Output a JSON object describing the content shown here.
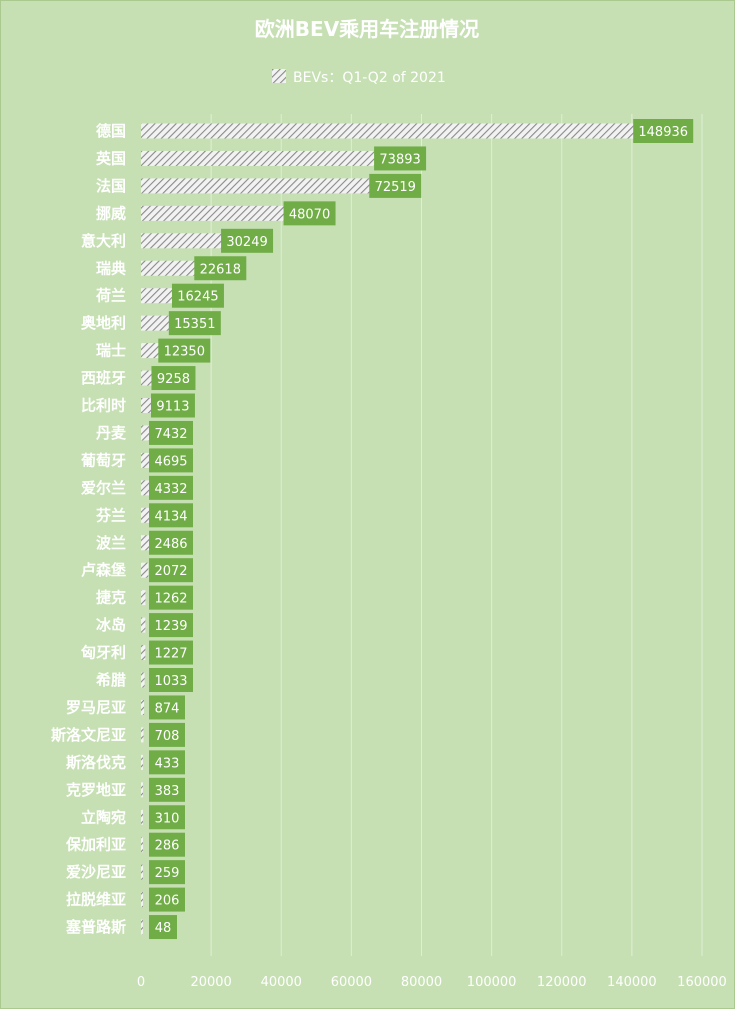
{
  "chart_data": {
    "type": "bar",
    "orientation": "horizontal",
    "title": "欧洲BEV乘用车注册情况",
    "legend": {
      "position": "top",
      "entries": [
        "BEVs：Q1-Q2 of 2021"
      ]
    },
    "series": [
      {
        "name": "BEVs：Q1-Q2 of 2021",
        "values": [
          148936,
          73893,
          72519,
          48070,
          30249,
          22618,
          16245,
          15351,
          12350,
          9258,
          9113,
          7432,
          4695,
          4332,
          4134,
          2486,
          2072,
          1262,
          1239,
          1227,
          1033,
          874,
          708,
          433,
          383,
          310,
          286,
          259,
          206,
          48
        ]
      }
    ],
    "categories": [
      "德国",
      "英国",
      "法国",
      "挪威",
      "意大利",
      "瑞典",
      "荷兰",
      "奥地利",
      "瑞士",
      "西班牙",
      "比利时",
      "丹麦",
      "葡萄牙",
      "爱尔兰",
      "芬兰",
      "波兰",
      "卢森堡",
      "捷克",
      "冰岛",
      "匈牙利",
      "希腊",
      "罗马尼亚",
      "斯洛文尼亚",
      "斯洛伐克",
      "克罗地亚",
      "立陶宛",
      "保加利亚",
      "爱沙尼亚",
      "拉脱维亚",
      "塞普路斯"
    ],
    "xlim": [
      0,
      160000
    ],
    "xticks": [
      "0",
      "20000",
      "40000",
      "60000",
      "80000",
      "100000",
      "120000",
      "140000",
      "160000"
    ],
    "grid": true,
    "colors": {
      "background": "#c6e0b4",
      "label_box": "#70ad47",
      "bar_hatch": "#ffffff",
      "text": "#ffffff"
    }
  }
}
